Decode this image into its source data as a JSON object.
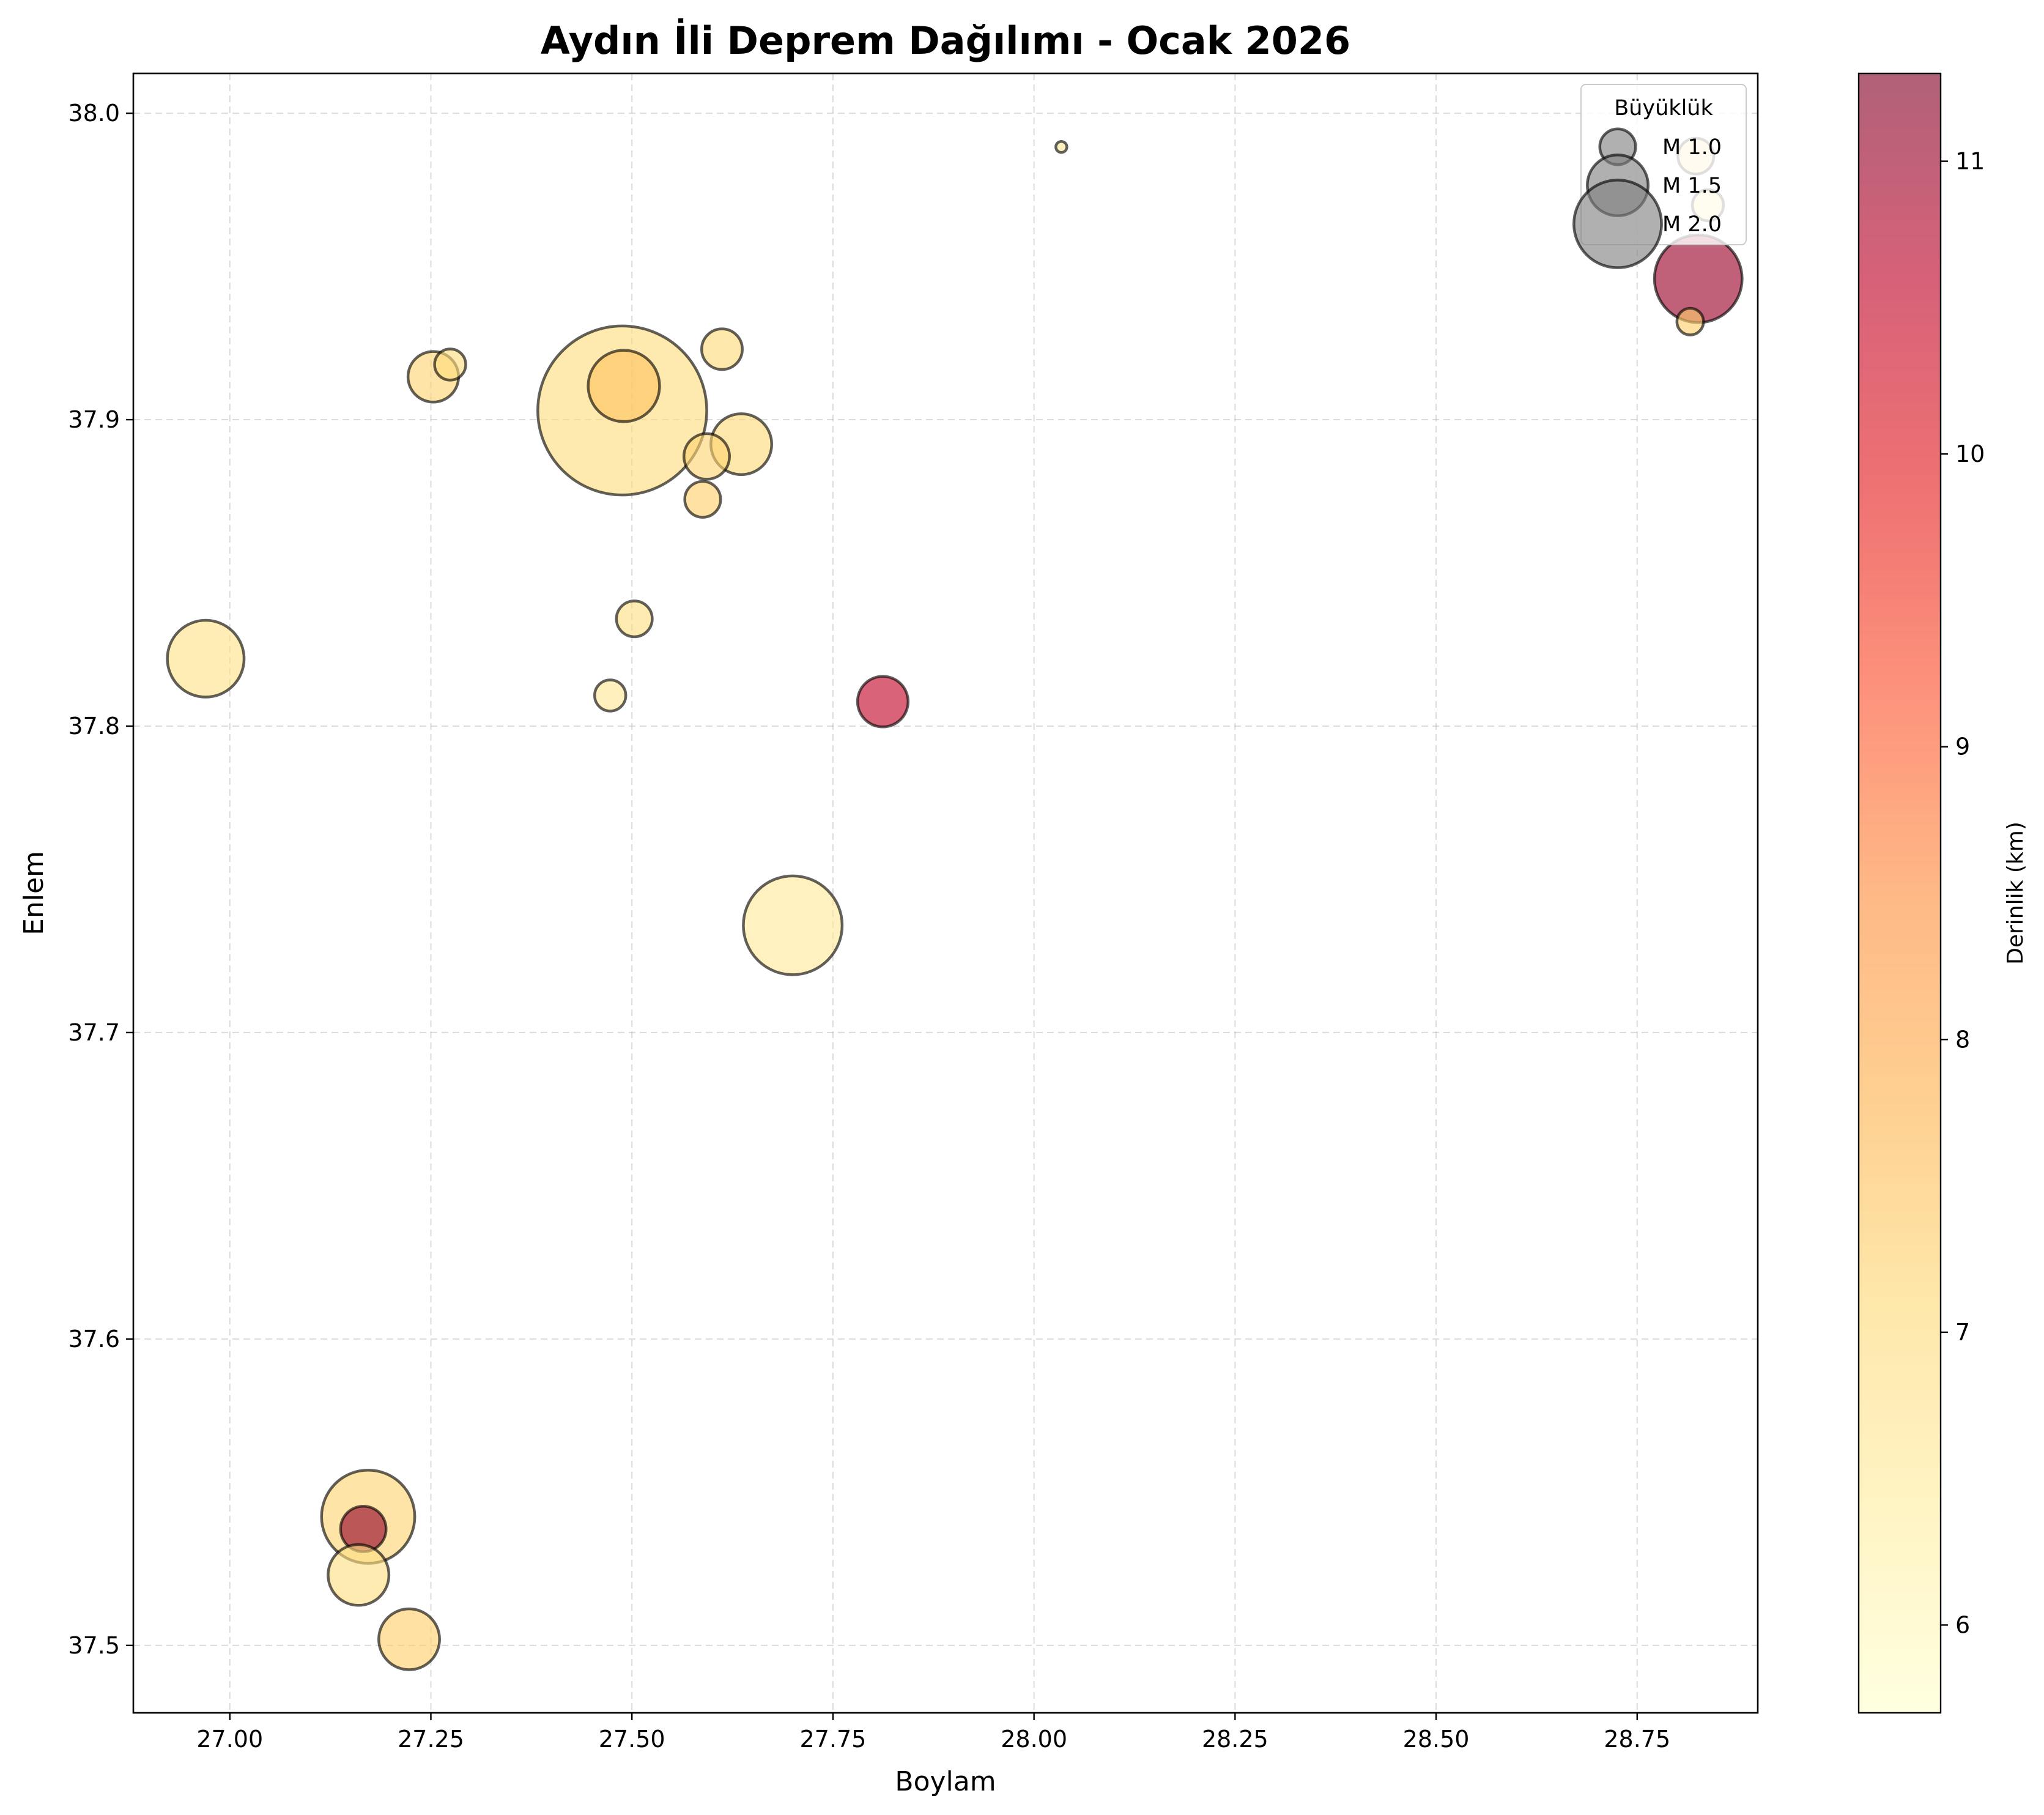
{
  "chart_data": {
    "type": "scatter",
    "title": "Aydın İli Deprem Dağılımı - Ocak 2026",
    "xlabel": "Boylam",
    "ylabel": "Enlem",
    "xlim": [
      26.88,
      28.9
    ],
    "ylim": [
      37.478,
      38.013
    ],
    "x_ticks": [
      "27.00",
      "27.25",
      "27.50",
      "27.75",
      "28.00",
      "28.25",
      "28.50",
      "28.75"
    ],
    "y_ticks": [
      "37.5",
      "37.6",
      "37.7",
      "37.8",
      "37.9",
      "38.0"
    ],
    "grid": true,
    "colorbar": {
      "label": "Derinlik (km)",
      "range": [
        5.7,
        11.3
      ],
      "ticks": [
        "6",
        "7",
        "8",
        "9",
        "10",
        "11"
      ],
      "colormap": "YlOrRd",
      "stops": [
        "#ffffcc",
        "#ffeda0",
        "#fed976",
        "#feb24c",
        "#fd8d3c",
        "#fc4e2a",
        "#e31a1c",
        "#bd0026",
        "#800026"
      ]
    },
    "legend": {
      "title": "Büyüklük",
      "placement": "top-right",
      "entries": [
        {
          "label": "M 1.0",
          "magnitude": 1.0
        },
        {
          "label": "M 1.5",
          "magnitude": 1.5
        },
        {
          "label": "M 2.0",
          "magnitude": 2.0
        }
      ]
    },
    "points": [
      {
        "lon": 27.488,
        "lat": 37.903,
        "magnitude": 3.4,
        "depth": 7.0
      },
      {
        "lon": 27.49,
        "lat": 37.911,
        "magnitude": 1.7,
        "depth": 7.5
      },
      {
        "lon": 27.253,
        "lat": 37.914,
        "magnitude": 1.3,
        "depth": 7.2
      },
      {
        "lon": 27.274,
        "lat": 37.918,
        "magnitude": 0.9,
        "depth": 7.0
      },
      {
        "lon": 27.612,
        "lat": 37.923,
        "magnitude": 1.1,
        "depth": 7.1
      },
      {
        "lon": 27.636,
        "lat": 37.892,
        "magnitude": 1.5,
        "depth": 7.1
      },
      {
        "lon": 27.593,
        "lat": 37.888,
        "magnitude": 1.2,
        "depth": 7.2
      },
      {
        "lon": 27.588,
        "lat": 37.874,
        "magnitude": 1.0,
        "depth": 7.3
      },
      {
        "lon": 27.503,
        "lat": 37.835,
        "magnitude": 1.0,
        "depth": 6.9
      },
      {
        "lon": 27.473,
        "lat": 37.81,
        "magnitude": 0.9,
        "depth": 6.6
      },
      {
        "lon": 26.97,
        "lat": 37.822,
        "magnitude": 1.8,
        "depth": 6.8
      },
      {
        "lon": 27.7,
        "lat": 37.735,
        "magnitude": 2.2,
        "depth": 6.5
      },
      {
        "lon": 27.812,
        "lat": 37.808,
        "magnitude": 1.3,
        "depth": 10.5
      },
      {
        "lon": 28.034,
        "lat": 37.989,
        "magnitude": 0.4,
        "depth": 6.5
      },
      {
        "lon": 28.823,
        "lat": 37.986,
        "magnitude": 1.0,
        "depth": 6.9
      },
      {
        "lon": 28.838,
        "lat": 37.97,
        "magnitude": 0.9,
        "depth": 6.8
      },
      {
        "lon": 28.826,
        "lat": 37.946,
        "magnitude": 2.0,
        "depth": 11.0
      },
      {
        "lon": 28.816,
        "lat": 37.932,
        "magnitude": 0.8,
        "depth": 7.3
      },
      {
        "lon": 27.172,
        "lat": 37.542,
        "magnitude": 2.1,
        "depth": 7.2
      },
      {
        "lon": 27.166,
        "lat": 37.538,
        "magnitude": 1.2,
        "depth": 11.1
      },
      {
        "lon": 27.16,
        "lat": 37.523,
        "magnitude": 1.5,
        "depth": 6.9
      },
      {
        "lon": 27.223,
        "lat": 37.502,
        "magnitude": 1.5,
        "depth": 7.3
      }
    ]
  }
}
